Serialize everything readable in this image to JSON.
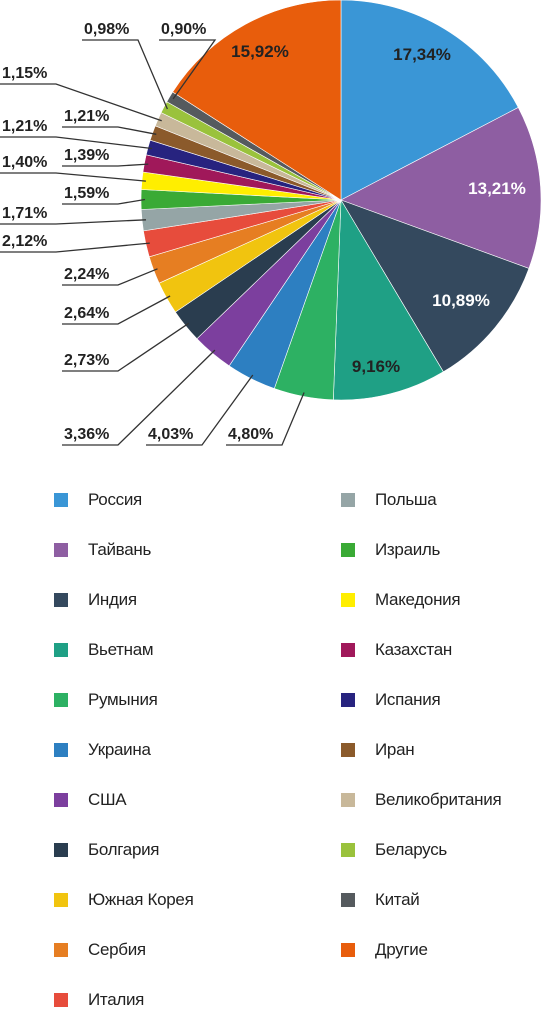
{
  "chart_data": {
    "type": "pie",
    "slices": [
      {
        "name": "Россия",
        "label": "17,34%",
        "value": 17.34,
        "color": "#3a96d6"
      },
      {
        "name": "Тайвань",
        "label": "13,21%",
        "value": 13.21,
        "color": "#8e5ea2"
      },
      {
        "name": "Индия",
        "label": "10,89%",
        "value": 10.89,
        "color": "#34495e"
      },
      {
        "name": "Вьетнам",
        "label": "9,16%",
        "value": 9.16,
        "color": "#1fa085"
      },
      {
        "name": "Румыния",
        "label": "4,80%",
        "value": 4.8,
        "color": "#2db163"
      },
      {
        "name": "Украина",
        "label": "4,03%",
        "value": 4.03,
        "color": "#2d7fc1"
      },
      {
        "name": "США",
        "label": "3,36%",
        "value": 3.36,
        "color": "#7c3f9e"
      },
      {
        "name": "Болгария",
        "label": "2,73%",
        "value": 2.73,
        "color": "#2a3d4f"
      },
      {
        "name": "Южная Корея",
        "label": "2,64%",
        "value": 2.64,
        "color": "#f1c40f"
      },
      {
        "name": "Сербия",
        "label": "2,24%",
        "value": 2.24,
        "color": "#e67e22"
      },
      {
        "name": "Италия",
        "label": "2,12%",
        "value": 2.12,
        "color": "#e74c3c"
      },
      {
        "name": "Польша",
        "label": "1,71%",
        "value": 1.71,
        "color": "#95a5a6"
      },
      {
        "name": "Израиль",
        "label": "1,59%",
        "value": 1.59,
        "color": "#3aaa35"
      },
      {
        "name": "Македония",
        "label": "1,40%",
        "value": 1.4,
        "color": "#ffee00"
      },
      {
        "name": "Казахстан",
        "label": "1,39%",
        "value": 1.39,
        "color": "#a0185a"
      },
      {
        "name": "Испания",
        "label": "1,21%",
        "value": 1.21,
        "color": "#27237f"
      },
      {
        "name": "Иран",
        "label": "1,21%",
        "value": 1.21,
        "color": "#8b5a2b"
      },
      {
        "name": "Великобритания",
        "label": "1,15%",
        "value": 1.15,
        "color": "#c8b89a"
      },
      {
        "name": "Беларусь",
        "label": "0,98%",
        "value": 0.98,
        "color": "#9ac23c"
      },
      {
        "name": "Китай",
        "label": "0,90%",
        "value": 0.9,
        "color": "#555a5e"
      },
      {
        "name": "Другие",
        "label": "15,92%",
        "value": 15.92,
        "color": "#e85d0c"
      }
    ],
    "legend_placement": "bottom, two columns"
  }
}
